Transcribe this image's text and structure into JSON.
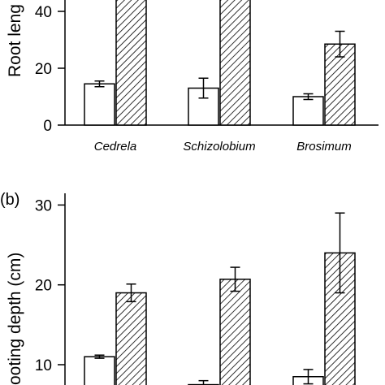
{
  "chart_data": [
    {
      "type": "bar",
      "panel_label": "",
      "ylabel": "Root leng",
      "categories": [
        "Cedrela",
        "Schizolobium",
        "Brosimum"
      ],
      "yticks": [
        0,
        20,
        40
      ],
      "ylim": [
        0,
        55
      ],
      "series": [
        {
          "pattern": "open",
          "values": [
            14.5,
            13.0,
            10.0
          ],
          "errors": [
            1.0,
            3.5,
            1.0
          ]
        },
        {
          "pattern": "hatched",
          "values": [
            60,
            60,
            28.5
          ],
          "errors": [
            null,
            5.0,
            4.5
          ]
        }
      ],
      "grid": false,
      "legend": "none"
    },
    {
      "type": "bar",
      "panel_label": "(b)",
      "ylabel": "ooting depth (cm)",
      "categories": [
        "Cedrela",
        "Schizolobium",
        "Brosimum"
      ],
      "yticks": [
        10,
        20,
        30
      ],
      "ylim": [
        5,
        30
      ],
      "series": [
        {
          "pattern": "open",
          "values": [
            11.0,
            7.5,
            8.5
          ],
          "errors": [
            0.2,
            0.5,
            0.9
          ]
        },
        {
          "pattern": "hatched",
          "values": [
            19.0,
            20.7,
            24.0
          ],
          "errors": [
            1.1,
            1.5,
            5.0
          ]
        }
      ],
      "grid": false,
      "legend": "none"
    }
  ]
}
